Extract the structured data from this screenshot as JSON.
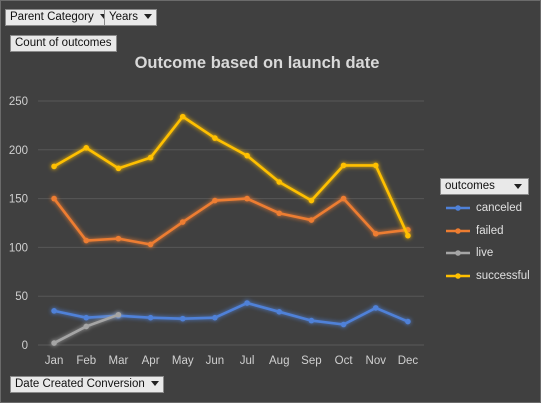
{
  "filters": {
    "parent_category": "Parent Category",
    "years": "Years",
    "values_field": "Count of outcomes",
    "axis_field": "Date Created Conversion",
    "legend_field": "outcomes"
  },
  "chart_data": {
    "type": "line",
    "title": "Outcome based on launch date",
    "xlabel": "",
    "ylabel": "",
    "categories": [
      "Jan",
      "Feb",
      "Mar",
      "Apr",
      "May",
      "Jun",
      "Jul",
      "Aug",
      "Sep",
      "Oct",
      "Nov",
      "Dec"
    ],
    "ylim": [
      0,
      250
    ],
    "yticks": [
      0,
      50,
      100,
      150,
      200,
      250
    ],
    "grid": true,
    "legend_position": "right",
    "series": [
      {
        "name": "canceled",
        "color": "#4f81d8",
        "values": [
          35,
          28,
          30,
          28,
          27,
          28,
          43,
          34,
          25,
          21,
          38,
          24
        ]
      },
      {
        "name": "failed",
        "color": "#ed7d31",
        "values": [
          150,
          107,
          109,
          103,
          126,
          148,
          150,
          135,
          128,
          150,
          114,
          118
        ]
      },
      {
        "name": "live",
        "color": "#a5a5a5",
        "values": [
          2,
          19,
          31,
          null,
          null,
          null,
          null,
          null,
          null,
          null,
          null,
          null
        ]
      },
      {
        "name": "successful",
        "color": "#ffc000",
        "values": [
          183,
          202,
          181,
          192,
          234,
          212,
          194,
          167,
          148,
          184,
          184,
          112
        ]
      }
    ]
  }
}
